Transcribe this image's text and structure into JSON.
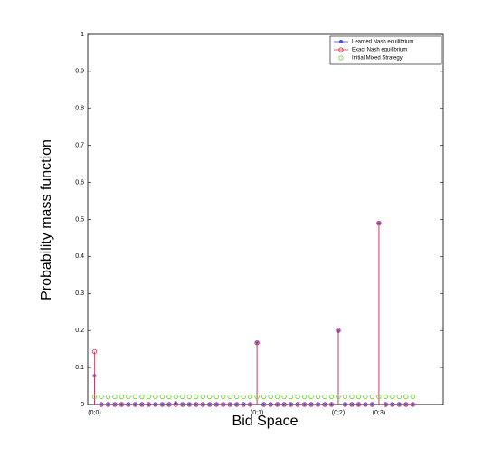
{
  "chart_data": {
    "type": "stem",
    "xlabel": "Bid Space",
    "ylabel": "Probability mass function",
    "categories": [
      "(0;0)",
      null,
      null,
      null,
      null,
      null,
      null,
      null,
      null,
      null,
      null,
      null,
      null,
      null,
      null,
      null,
      null,
      null,
      null,
      null,
      null,
      null,
      null,
      null,
      "(0;1)",
      null,
      null,
      null,
      null,
      null,
      null,
      null,
      null,
      null,
      null,
      null,
      "(0;2)",
      null,
      null,
      null,
      null,
      null,
      "(0;3)",
      null,
      null,
      null,
      null,
      null
    ],
    "xlim": [
      -1,
      51.5
    ],
    "ylim": [
      0,
      1
    ],
    "yticks": [
      0,
      0.1,
      0.2,
      0.3,
      0.4,
      0.5,
      0.6,
      0.7,
      0.8,
      0.9,
      1
    ],
    "legend": "upper right",
    "series": [
      {
        "name": "Learned Nash equilibrium",
        "color": "#3b4fd8",
        "marker": "star",
        "stems": true,
        "values": [
          0.078,
          0,
          0,
          0,
          0,
          0,
          0,
          0,
          0,
          0,
          0,
          0,
          0.004,
          0,
          0,
          0,
          0,
          0,
          0,
          0,
          0,
          0,
          0,
          0,
          0.167,
          0,
          0,
          0,
          0,
          0,
          0,
          0,
          0,
          0,
          0,
          0,
          0.199,
          0,
          0,
          0,
          0,
          0,
          0.49,
          0,
          0,
          0,
          0,
          0
        ]
      },
      {
        "name": "Exact Nash equilibrium",
        "color": "#d9304f",
        "marker": "circle",
        "stems": true,
        "values": [
          0.143,
          0,
          0,
          0,
          0,
          0,
          0,
          0,
          0,
          0,
          0,
          0,
          0,
          0,
          0,
          0,
          0,
          0,
          0,
          0,
          0,
          0,
          0,
          0,
          0.167,
          0,
          0,
          0,
          0,
          0,
          0,
          0,
          0,
          0,
          0,
          0,
          0.2,
          0,
          0,
          0,
          0,
          0,
          0.49,
          0,
          0,
          0,
          0,
          0
        ]
      },
      {
        "name": "Initial Mixed Strategy",
        "color": "#6fd13c",
        "marker": "circle",
        "stems": false,
        "values": [
          0.021,
          0.021,
          0.021,
          0.021,
          0.021,
          0.021,
          0.021,
          0.021,
          0.021,
          0.021,
          0.021,
          0.021,
          0.021,
          0.021,
          0.021,
          0.021,
          0.021,
          0.021,
          0.021,
          0.021,
          0.021,
          0.021,
          0.021,
          0.021,
          0.021,
          0.021,
          0.021,
          0.021,
          0.021,
          0.021,
          0.021,
          0.021,
          0.021,
          0.021,
          0.021,
          0.021,
          0.021,
          0.021,
          0.021,
          0.021,
          0.021,
          0.021,
          0.021,
          0.021,
          0.021,
          0.021,
          0.021,
          0.021
        ]
      }
    ]
  }
}
